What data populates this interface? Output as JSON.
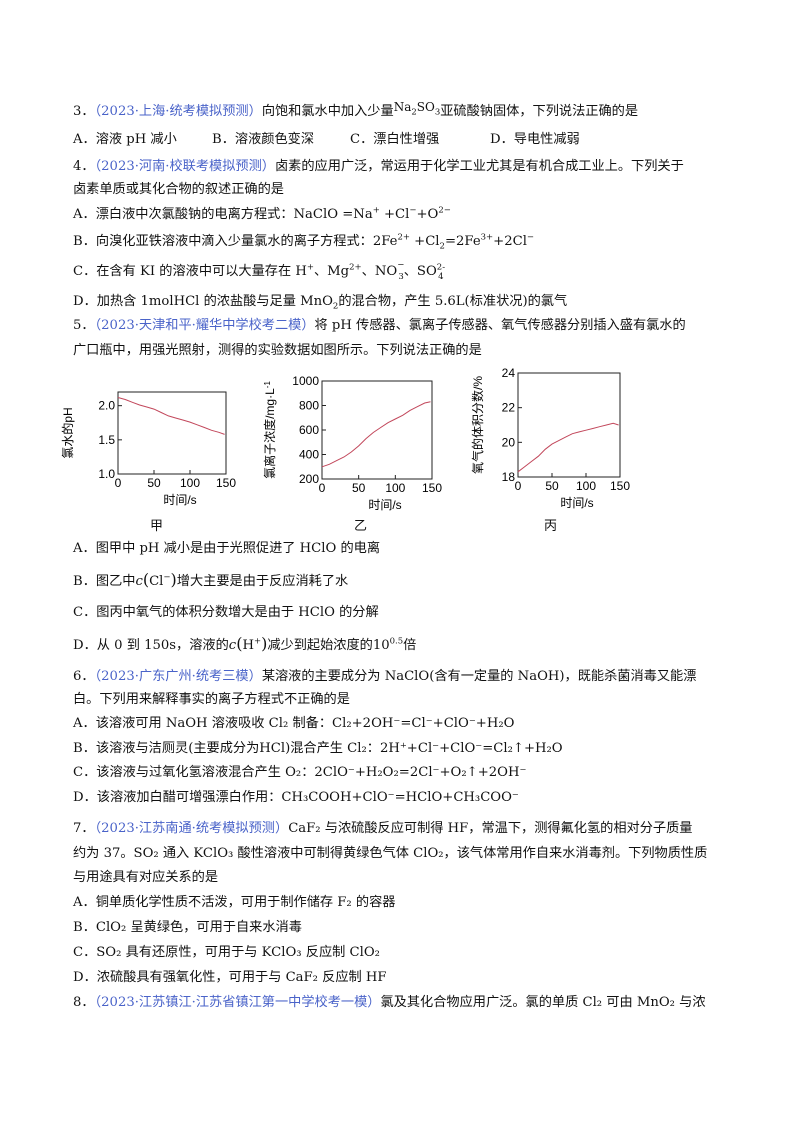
{
  "q3": {
    "num": "3．",
    "src": "（2023·上海·统考模拟预测）",
    "text_a": "向饱和氯水中加入少量",
    "chem_na": "Na",
    "chem_na_sub": "2",
    "chem_so": "SO",
    "chem_so_sub": "3",
    "text_b": "亚硫酸钠固体，下列说法正确的是",
    "opts": [
      "A．溶液 pH 减小",
      "B．溶液颜色变深",
      "C．漂白性增强",
      "D．导电性减弱"
    ]
  },
  "q4": {
    "num": "4．",
    "src": "（2023·河南·校联考模拟预测）",
    "stem1": "卤素的应用广泛，常运用于化学工业尤其是有机合成工业上。下列关于",
    "stem2": "卤素单质或其化合物的叙述正确的是",
    "a": "A．漂白液中次氯酸钠的电离方程式：NaClO =Na",
    "a_sup1": "+",
    "a_mid": " +Cl",
    "a_sup2": "−",
    "a_mid2": "+O",
    "a_sup3": "2−",
    "b": "B．向溴化亚铁溶液中滴入少量氯水的离子方程式：2Fe",
    "b_sup1": "2+",
    "b_mid": " +Cl",
    "b_sub1": "2",
    "b_mid2": "=2Fe",
    "b_sup2": "3+",
    "b_mid3": "+2Cl",
    "b_sup3": "−",
    "c": "C．在含有 KI 的溶液中可以大量存在 H",
    "c_sup1": "+",
    "c_mid": "、Mg",
    "c_sup2": "2+",
    "c_mid2": "、NO",
    "c_sub1": "3",
    "c_sup3": "−",
    "c_mid3": "、SO",
    "c_sup4": "2-",
    "c_sub2": "4",
    "d": "D．加热含 1molHCl 的浓盐酸与足量 MnO",
    "d_sub1": "2",
    "d_tail": "的混合物，产生 5.6L(标准状况)的氯气"
  },
  "q5": {
    "num": "5．",
    "src": "（2023·天津和平·耀华中学校考二模）",
    "stem1": "将 pH 传感器、氯离子传感器、氧气传感器分别插入盛有氯水的",
    "stem2": "广口瓶中，用强光照射，测得的实验数据如图所示。下列说法正确的是",
    "a": "A．图甲中 pH 减小是由于光照促进了 HClO 的电离",
    "b1": "B．图乙中",
    "b_c": "c",
    "b_ion": "Cl",
    "b_sup": "−",
    "b2": "增大主要是由于反应消耗了水",
    "c": "C．图丙中氧气的体积分数增大是由于 HClO 的分解",
    "d1": "D．从 0 到 150s，溶液的",
    "d_c": "c",
    "d_ion": "H",
    "d_sup": "+",
    "d2": "减少到起始浓度的",
    "d_base": "10",
    "d_exp": "0.5",
    "d3": "倍"
  },
  "chart_data": [
    {
      "type": "line",
      "caption": "甲",
      "title": "",
      "xlabel": "时间/s",
      "ylabel": "氯水的pH",
      "xlim": [
        0,
        150
      ],
      "ylim": [
        1.0,
        2.2
      ],
      "xticks": [
        "0",
        "50",
        "100",
        "150"
      ],
      "yticks": [
        "1.0",
        "1.5",
        "2.0"
      ],
      "color": "#c2475b",
      "x": [
        0,
        10,
        20,
        30,
        40,
        50,
        60,
        70,
        80,
        90,
        100,
        110,
        120,
        130,
        140,
        148
      ],
      "y": [
        2.12,
        2.09,
        2.05,
        2.01,
        1.98,
        1.95,
        1.9,
        1.85,
        1.82,
        1.79,
        1.76,
        1.72,
        1.68,
        1.64,
        1.61,
        1.58
      ]
    },
    {
      "type": "line",
      "caption": "乙",
      "title": "",
      "xlabel": "时间/s",
      "ylabel": "氯离子浓度/mg·L",
      "ylabel_sup": "-1",
      "xlim": [
        0,
        150
      ],
      "ylim": [
        200,
        1000
      ],
      "xticks": [
        "0",
        "50",
        "100",
        "150"
      ],
      "yticks": [
        "200",
        "400",
        "600",
        "800",
        "1000"
      ],
      "color": "#c2475b",
      "x": [
        0,
        10,
        20,
        30,
        40,
        50,
        60,
        70,
        80,
        90,
        100,
        110,
        120,
        130,
        140,
        148
      ],
      "y": [
        300,
        320,
        350,
        380,
        420,
        470,
        530,
        580,
        620,
        660,
        690,
        720,
        760,
        790,
        820,
        830
      ]
    },
    {
      "type": "line",
      "caption": "丙",
      "title": "",
      "xlabel": "时间/s",
      "ylabel": "氧气的体积分数/%",
      "xlim": [
        0,
        150
      ],
      "ylim": [
        18,
        24
      ],
      "xticks": [
        "0",
        "50",
        "100",
        "150"
      ],
      "yticks": [
        "18",
        "20",
        "22",
        "24"
      ],
      "color": "#c2475b",
      "x": [
        0,
        10,
        20,
        30,
        40,
        50,
        60,
        70,
        80,
        90,
        100,
        110,
        120,
        130,
        140,
        148
      ],
      "y": [
        18.3,
        18.6,
        18.9,
        19.2,
        19.6,
        19.9,
        20.1,
        20.3,
        20.5,
        20.6,
        20.7,
        20.8,
        20.9,
        21.0,
        21.1,
        21.0
      ]
    }
  ],
  "q6": {
    "num": "6．",
    "src": "（2023·广东广州·统考三模）",
    "stem1": "某溶液的主要成分为 NaClO(含有一定量的 NaOH)，既能杀菌消毒又能漂",
    "stem2": "白。下列用来解释事实的离子方程式不正确的是",
    "a": "A．该溶液可用 NaOH 溶液吸收 Cl₂ 制备：Cl₂+2OH⁻=Cl⁻+ClO⁻+H₂O",
    "b": "B．该溶液与洁厕灵(主要成分为HCl)混合产生 Cl₂：2H⁺+Cl⁻+ClO⁻=Cl₂↑+H₂O",
    "c": "C．该溶液与过氧化氢溶液混合产生 O₂：2ClO⁻+H₂O₂=2Cl⁻+O₂↑+2OH⁻",
    "d": "D．该溶液加白醋可增强漂白作用：CH₃COOH+ClO⁻=HClO+CH₃COO⁻"
  },
  "q7": {
    "num": "7．",
    "src": "（2023·江苏南通·统考模拟预测）",
    "stem1": "CaF₂ 与浓硫酸反应可制得 HF，常温下，测得氟化氢的相对分子质量",
    "stem2": "约为 37。SO₂ 通入 KClO₃ 酸性溶液中可制得黄绿色气体 ClO₂，该气体常用作自来水消毒剂。下列物质性质",
    "stem3": "与用途具有对应关系的是",
    "a": "A．铜单质化学性质不活泼，可用于制作储存 F₂ 的容器",
    "b": "B．ClO₂ 呈黄绿色，可用于自来水消毒",
    "c": "C．SO₂ 具有还原性，可用于与 KClO₃ 反应制 ClO₂",
    "d": "D．浓硫酸具有强氧化性，可用于与 CaF₂ 反应制 HF"
  },
  "q8": {
    "num": "8．",
    "src": "（2023·江苏镇江·江苏省镇江第一中学校考一模）",
    "stem1": "氯及其化合物应用广泛。氯的单质 Cl₂ 可由 MnO₂ 与浓"
  }
}
